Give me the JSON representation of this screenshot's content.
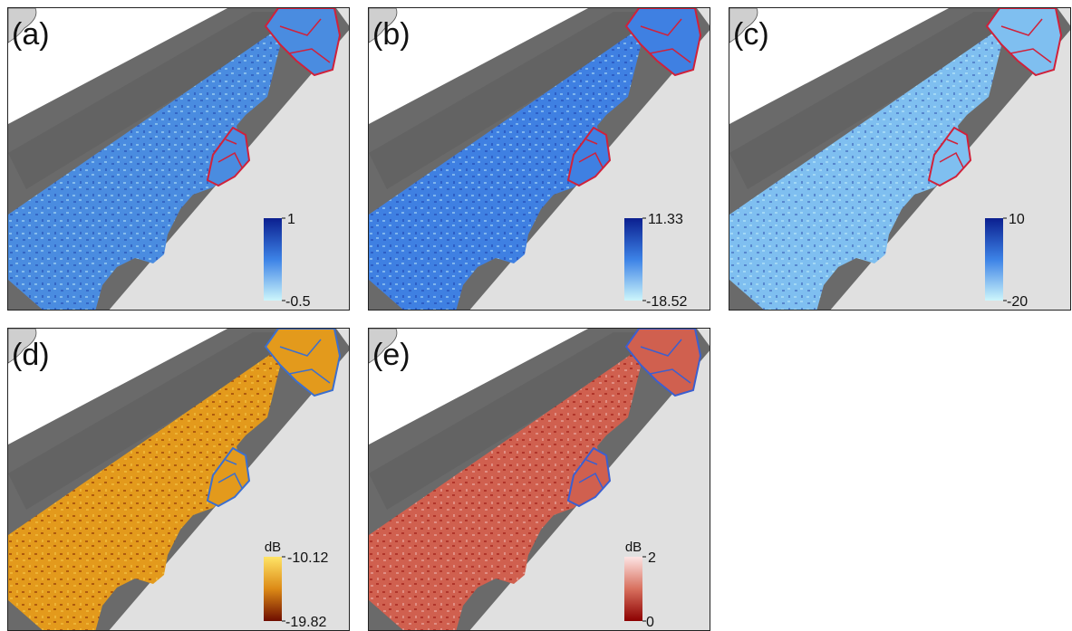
{
  "panels": [
    {
      "label": "(a)",
      "colorbar": {
        "max": 1,
        "min": -0.5
      },
      "colors": [
        "#0b1f8f",
        "#3c82e6",
        "#cdf6fb"
      ],
      "fill": "#4a8ce0",
      "outline": "#d0213a"
    },
    {
      "label": "(b)",
      "colorbar": {
        "max": 11.33,
        "min": -18.52
      },
      "colors": [
        "#0b1f8f",
        "#3c82e6",
        "#cdf6fb"
      ],
      "fill": "#3f80e2",
      "outline": "#d0213a"
    },
    {
      "label": "(c)",
      "colorbar": {
        "max": 10,
        "min": -20
      },
      "colors": [
        "#0b1f8f",
        "#3c82e6",
        "#cdf6fb"
      ],
      "fill": "#7fbff0",
      "outline": "#d0213a"
    },
    {
      "label": "(d)",
      "colorbar": {
        "unit": "dB",
        "max": -10.12,
        "min": -19.82
      },
      "colors": [
        "#ffe466",
        "#dc8a16",
        "#6e0d00"
      ],
      "fill": "#e39a1c",
      "outline": "#3b6fd0"
    },
    {
      "label": "(e)",
      "colorbar": {
        "unit": "dB",
        "max": 2,
        "min": 0
      },
      "colors": [
        "#fde4e4",
        "#d8705e",
        "#8c0000"
      ],
      "fill": "#d0604f",
      "outline": "#3b5fd0"
    }
  ]
}
